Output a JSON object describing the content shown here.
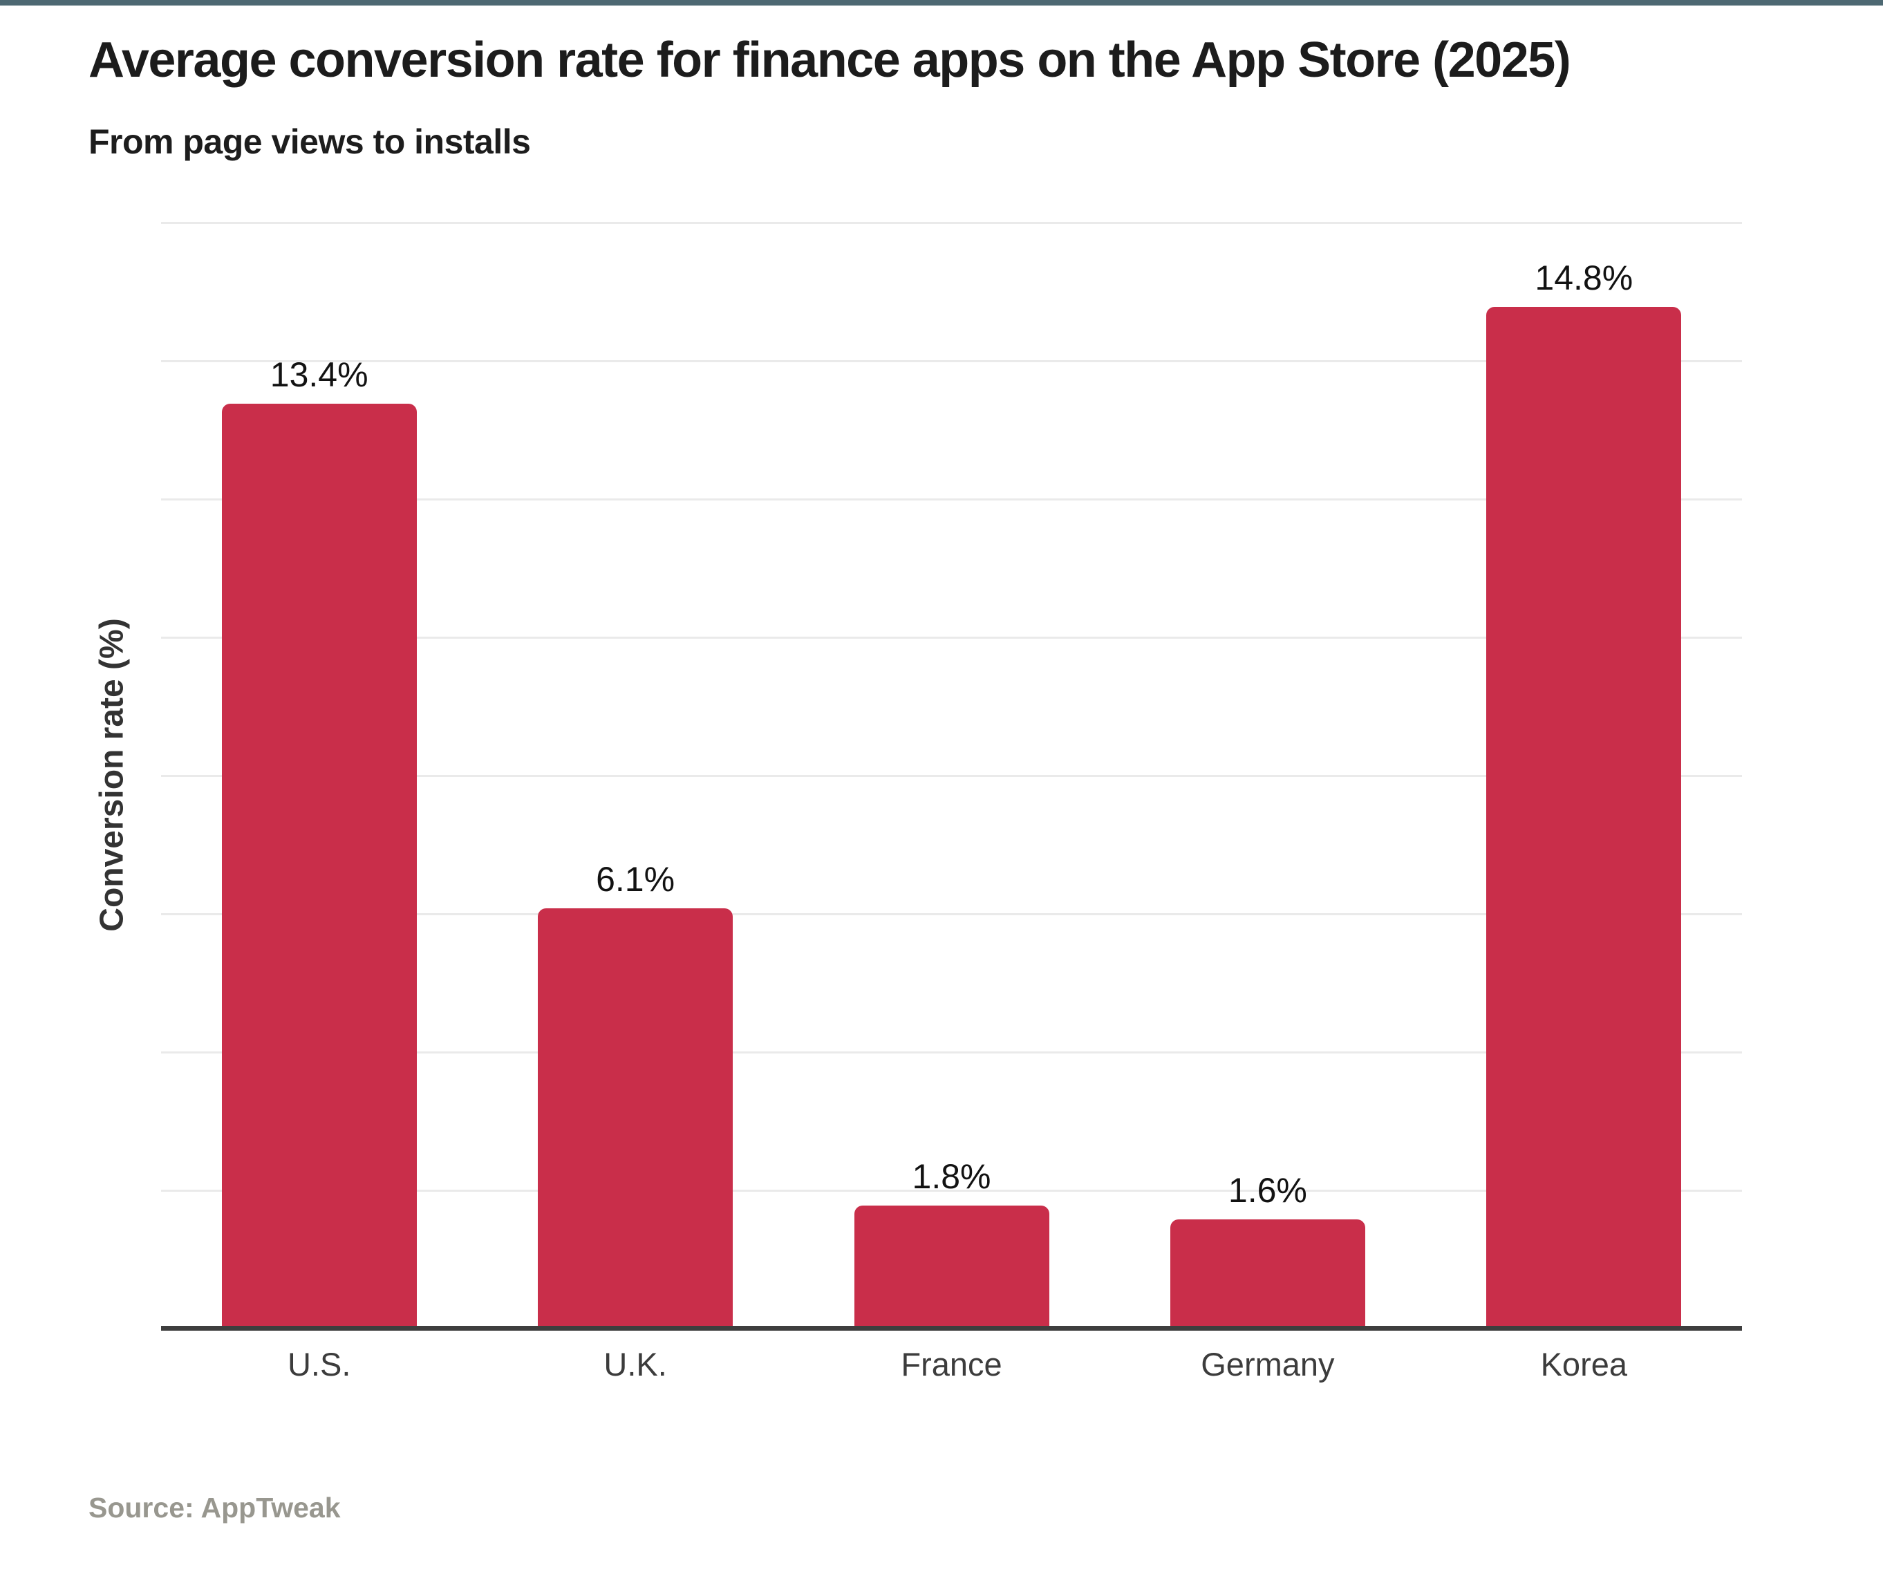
{
  "page": {
    "accent_bar_color": "#4d6872",
    "background_color": "#ffffff"
  },
  "header": {
    "title": "Average conversion rate for finance apps on the App Store (2025)",
    "subtitle": "From page views to installs"
  },
  "chart_data": {
    "type": "bar",
    "categories": [
      "U.S.",
      "U.K.",
      "France",
      "Germany",
      "Korea"
    ],
    "values": [
      13.4,
      6.1,
      1.8,
      1.6,
      14.8
    ],
    "value_labels": [
      "13.4%",
      "6.1%",
      "1.8%",
      "1.6%",
      "14.8%"
    ],
    "title": "Average conversion rate for finance apps on the App Store (2025)",
    "subtitle": "From page views to installs",
    "xlabel": "",
    "ylabel": "Conversion rate (%)",
    "ylim": [
      0,
      16
    ],
    "gridline_step": 2,
    "grid": true,
    "legend": false,
    "bar_color": "#c92e4a",
    "gridline_color": "#eaeaea",
    "axis_line_color": "#3e3e3e"
  },
  "footer": {
    "source": "Source: AppTweak"
  }
}
